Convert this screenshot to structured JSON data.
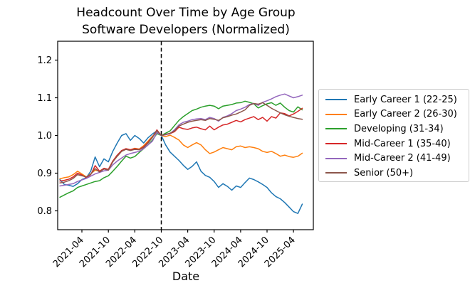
{
  "chart_data": {
    "type": "line",
    "title": "Headcount Over Time by Age Group",
    "subtitle": "Software Developers (Normalized)",
    "xlabel": "Date",
    "ylabel": "",
    "ylim": [
      0.75,
      1.25
    ],
    "yticks": [
      0.8,
      0.9,
      1.0,
      1.1,
      1.2
    ],
    "xtick_labels": [
      "2021-04",
      "2021-10",
      "2022-04",
      "2022-10",
      "2023-04",
      "2023-10",
      "2024-04",
      "2024-10",
      "2025-04"
    ],
    "grid": false,
    "legend_position": "right-outside",
    "vline": {
      "month": "2022-10",
      "style": "dashed",
      "color": "#000000"
    },
    "x_months": [
      "2020-11",
      "2020-12",
      "2021-01",
      "2021-02",
      "2021-03",
      "2021-04",
      "2021-05",
      "2021-06",
      "2021-07",
      "2021-08",
      "2021-09",
      "2021-10",
      "2021-11",
      "2021-12",
      "2022-01",
      "2022-02",
      "2022-03",
      "2022-04",
      "2022-05",
      "2022-06",
      "2022-07",
      "2022-08",
      "2022-09",
      "2022-10",
      "2022-11",
      "2022-12",
      "2023-01",
      "2023-02",
      "2023-03",
      "2023-04",
      "2023-05",
      "2023-06",
      "2023-07",
      "2023-08",
      "2023-09",
      "2023-10",
      "2023-11",
      "2023-12",
      "2024-01",
      "2024-02",
      "2024-03",
      "2024-04",
      "2024-05",
      "2024-06",
      "2024-07",
      "2024-08",
      "2024-09",
      "2024-10",
      "2024-11",
      "2024-12",
      "2025-01",
      "2025-02",
      "2025-03",
      "2025-04",
      "2025-05",
      "2025-06"
    ],
    "series": [
      {
        "name": "Early Career 1 (22-25)",
        "color": "#1f77b4",
        "values": [
          0.883,
          0.87,
          0.868,
          0.865,
          0.872,
          0.883,
          0.888,
          0.905,
          0.943,
          0.917,
          0.938,
          0.93,
          0.958,
          0.98,
          1.0,
          1.005,
          0.987,
          1.0,
          0.992,
          0.98,
          0.994,
          1.004,
          1.012,
          1.0,
          0.975,
          0.956,
          0.945,
          0.934,
          0.921,
          0.91,
          0.918,
          0.93,
          0.905,
          0.894,
          0.889,
          0.878,
          0.862,
          0.872,
          0.865,
          0.855,
          0.866,
          0.862,
          0.875,
          0.887,
          0.883,
          0.877,
          0.87,
          0.862,
          0.848,
          0.838,
          0.832,
          0.822,
          0.81,
          0.798,
          0.793,
          0.818
        ]
      },
      {
        "name": "Early Career 2 (26-30)",
        "color": "#ff7f0e",
        "values": [
          0.885,
          0.888,
          0.89,
          0.896,
          0.905,
          0.898,
          0.89,
          0.898,
          0.908,
          0.905,
          0.912,
          0.91,
          0.932,
          0.945,
          0.958,
          0.965,
          0.962,
          0.966,
          0.964,
          0.973,
          0.985,
          0.998,
          1.008,
          1.0,
          0.997,
          1.001,
          0.995,
          0.988,
          0.975,
          0.968,
          0.975,
          0.981,
          0.975,
          0.962,
          0.952,
          0.956,
          0.962,
          0.968,
          0.965,
          0.962,
          0.97,
          0.972,
          0.968,
          0.97,
          0.968,
          0.965,
          0.958,
          0.955,
          0.958,
          0.952,
          0.945,
          0.948,
          0.944,
          0.942,
          0.945,
          0.953
        ]
      },
      {
        "name": "Developing (31-34)",
        "color": "#2ca02c",
        "values": [
          0.836,
          0.842,
          0.848,
          0.853,
          0.862,
          0.866,
          0.87,
          0.874,
          0.878,
          0.88,
          0.888,
          0.893,
          0.905,
          0.918,
          0.932,
          0.945,
          0.94,
          0.944,
          0.955,
          0.965,
          0.975,
          0.988,
          1.005,
          1.0,
          1.006,
          1.012,
          1.026,
          1.04,
          1.05,
          1.058,
          1.066,
          1.07,
          1.075,
          1.078,
          1.08,
          1.078,
          1.071,
          1.078,
          1.08,
          1.082,
          1.086,
          1.087,
          1.091,
          1.088,
          1.084,
          1.073,
          1.079,
          1.084,
          1.087,
          1.08,
          1.086,
          1.075,
          1.066,
          1.062,
          1.076,
          1.068
        ]
      },
      {
        "name": "Mid-Career 1 (35-40)",
        "color": "#d62728",
        "values": [
          0.879,
          0.881,
          0.884,
          0.89,
          0.9,
          0.895,
          0.888,
          0.896,
          0.92,
          0.905,
          0.913,
          0.91,
          0.932,
          0.948,
          0.96,
          0.965,
          0.962,
          0.965,
          0.963,
          0.97,
          0.982,
          0.996,
          1.015,
          1.0,
          1.002,
          1.005,
          1.01,
          1.022,
          1.018,
          1.016,
          1.02,
          1.022,
          1.018,
          1.015,
          1.025,
          1.015,
          1.022,
          1.028,
          1.03,
          1.035,
          1.04,
          1.036,
          1.042,
          1.046,
          1.05,
          1.042,
          1.048,
          1.038,
          1.05,
          1.046,
          1.06,
          1.058,
          1.052,
          1.057,
          1.064,
          1.072
        ]
      },
      {
        "name": "Mid-Career 2 (41-49)",
        "color": "#9467bd",
        "values": [
          0.866,
          0.868,
          0.87,
          0.872,
          0.878,
          0.882,
          0.886,
          0.892,
          0.898,
          0.902,
          0.906,
          0.908,
          0.922,
          0.932,
          0.94,
          0.948,
          0.952,
          0.955,
          0.958,
          0.965,
          0.975,
          0.985,
          1.008,
          1.0,
          1.002,
          1.005,
          1.015,
          1.028,
          1.035,
          1.038,
          1.042,
          1.044,
          1.045,
          1.042,
          1.048,
          1.045,
          1.038,
          1.048,
          1.052,
          1.058,
          1.066,
          1.07,
          1.075,
          1.082,
          1.085,
          1.08,
          1.088,
          1.092,
          1.097,
          1.103,
          1.107,
          1.11,
          1.105,
          1.1,
          1.103,
          1.107
        ]
      },
      {
        "name": "Senior (50+)",
        "color": "#8c564b",
        "values": [
          0.874,
          0.876,
          0.88,
          0.886,
          0.896,
          0.893,
          0.89,
          0.897,
          0.912,
          0.903,
          0.911,
          0.908,
          0.93,
          0.945,
          0.958,
          0.963,
          0.96,
          0.963,
          0.962,
          0.968,
          0.98,
          0.995,
          1.013,
          1.0,
          1.003,
          1.006,
          1.012,
          1.025,
          1.03,
          1.035,
          1.038,
          1.04,
          1.042,
          1.04,
          1.045,
          1.043,
          1.04,
          1.047,
          1.05,
          1.054,
          1.057,
          1.062,
          1.068,
          1.08,
          1.085,
          1.083,
          1.087,
          1.08,
          1.072,
          1.066,
          1.06,
          1.055,
          1.051,
          1.048,
          1.045,
          1.043
        ]
      }
    ]
  }
}
